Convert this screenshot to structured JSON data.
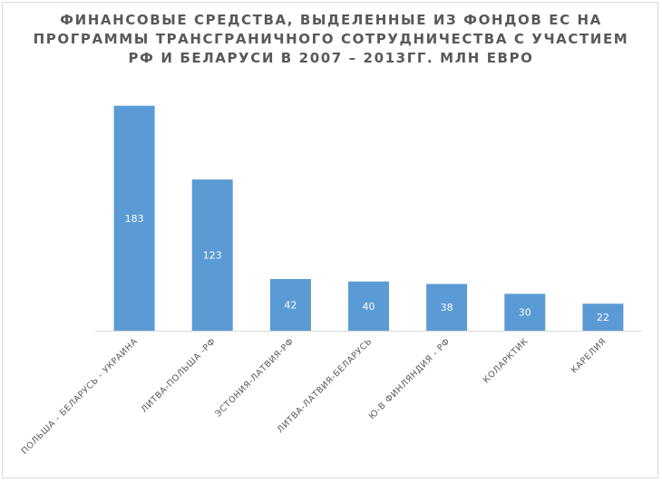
{
  "chart_data": {
    "type": "bar",
    "title_lines": [
      "ФИНАНСОВЫЕ СРЕДСТВА, ВЫДЕЛЕННЫЕ ИЗ ФОНДОВ ЕС НА",
      "ПРОГРАММЫ ТРАНСГРАНИЧНОГО СОТРУДНИЧЕСТВА С УЧАСТИЕМ",
      "РФ И БЕЛАРУСИ В 2007 – 2013ГГ. МЛН ЕВРО"
    ],
    "categories": [
      "ПОЛЬША - БЕЛАРУСЬ - УКРАИНА",
      "ЛИТВА-ПОЛЬША -РФ",
      "ЭСТОНИЯ-ЛАТВИЯ-РФ",
      "ЛИТВА-ЛАТВИЯ-БЕЛАРУСЬ",
      "Ю-В ФИНЛЯНДИЯ - РФ",
      "КОЛАРКТИК",
      "КАРЕЛИЯ"
    ],
    "values": [
      183,
      123,
      42,
      40,
      38,
      30,
      22
    ],
    "ylim": [
      0,
      185
    ],
    "grid": false,
    "legend": "none",
    "colors": {
      "bar": "#5b9bd5",
      "label": "#ffffff",
      "axis": "#d9d9d9",
      "text": "#595959"
    }
  }
}
